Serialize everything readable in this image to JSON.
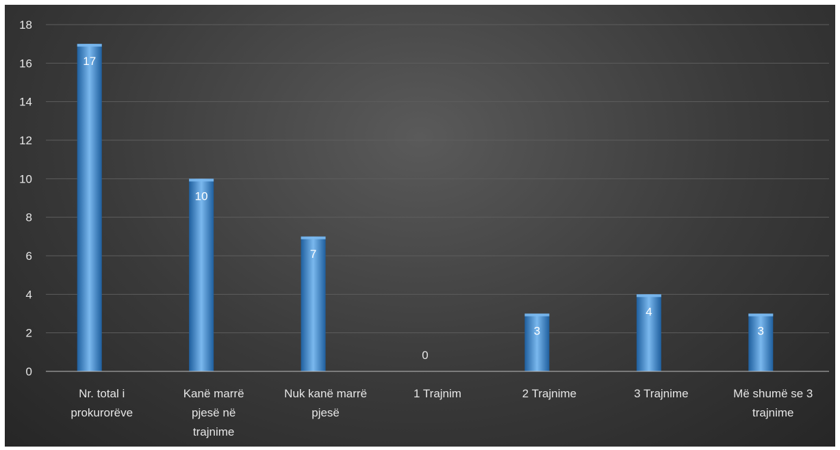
{
  "chart_data": {
    "type": "bar",
    "title": "",
    "xlabel": "",
    "ylabel": "",
    "categories": [
      [
        "Nr. total i",
        "prokurorëve"
      ],
      [
        "Kanë marrë",
        "pjesë në",
        "trajnime"
      ],
      [
        "Nuk kanë marrë",
        "pjesë"
      ],
      [
        "1 Trajnim"
      ],
      [
        "2 Trajnime"
      ],
      [
        "3 Trajnime"
      ],
      [
        "Më shumë se 3",
        "trajnime"
      ]
    ],
    "values": [
      17,
      10,
      7,
      0,
      3,
      4,
      3
    ],
    "ylim": [
      0,
      18
    ],
    "yticks": [
      0,
      2,
      4,
      6,
      8,
      10,
      12,
      14,
      16,
      18
    ],
    "grid": true,
    "legend": "none",
    "colors": {
      "bar_light": "#7ab8ee",
      "bar_mid": "#3d8fda",
      "bar_dark": "#1f5f9e",
      "background": "#3a3a3a"
    }
  }
}
